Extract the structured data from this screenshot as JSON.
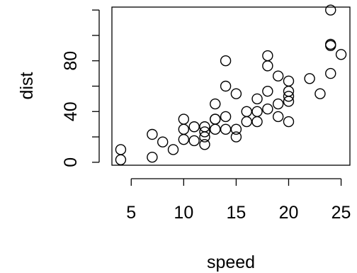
{
  "chart_data": {
    "type": "scatter",
    "title": "",
    "xlabel": "speed",
    "ylabel": "dist",
    "xlim": [
      3.16,
      25.84
    ],
    "ylim": [
      -2.32,
      122.32
    ],
    "xticks": [
      5,
      10,
      15,
      20,
      25
    ],
    "xtick_labels": [
      "5",
      "10",
      "15",
      "20",
      "25"
    ],
    "yticks": [
      0,
      20,
      40,
      60,
      80,
      100,
      120
    ],
    "ytick_labels": [
      "0",
      "",
      "40",
      "",
      "80",
      "",
      ""
    ],
    "grid": false,
    "legend": "none",
    "marker": "open-circle",
    "colors": {
      "stroke": "#000000",
      "background": "#ffffff"
    },
    "points": [
      [
        4,
        2
      ],
      [
        4,
        10
      ],
      [
        7,
        4
      ],
      [
        7,
        22
      ],
      [
        8,
        16
      ],
      [
        9,
        10
      ],
      [
        10,
        18
      ],
      [
        10,
        26
      ],
      [
        10,
        34
      ],
      [
        11,
        17
      ],
      [
        11,
        28
      ],
      [
        12,
        14
      ],
      [
        12,
        20
      ],
      [
        12,
        24
      ],
      [
        12,
        28
      ],
      [
        13,
        26
      ],
      [
        13,
        34
      ],
      [
        13,
        34
      ],
      [
        13,
        46
      ],
      [
        14,
        26
      ],
      [
        14,
        36
      ],
      [
        14,
        60
      ],
      [
        14,
        80
      ],
      [
        15,
        20
      ],
      [
        15,
        26
      ],
      [
        15,
        54
      ],
      [
        16,
        32
      ],
      [
        16,
        40
      ],
      [
        17,
        32
      ],
      [
        17,
        40
      ],
      [
        17,
        50
      ],
      [
        18,
        42
      ],
      [
        18,
        56
      ],
      [
        18,
        76
      ],
      [
        18,
        84
      ],
      [
        19,
        36
      ],
      [
        19,
        46
      ],
      [
        19,
        68
      ],
      [
        20,
        32
      ],
      [
        20,
        48
      ],
      [
        20,
        52
      ],
      [
        20,
        56
      ],
      [
        20,
        64
      ],
      [
        22,
        66
      ],
      [
        23,
        54
      ],
      [
        24,
        70
      ],
      [
        24,
        92
      ],
      [
        24,
        93
      ],
      [
        24,
        120
      ],
      [
        25,
        85
      ]
    ]
  }
}
